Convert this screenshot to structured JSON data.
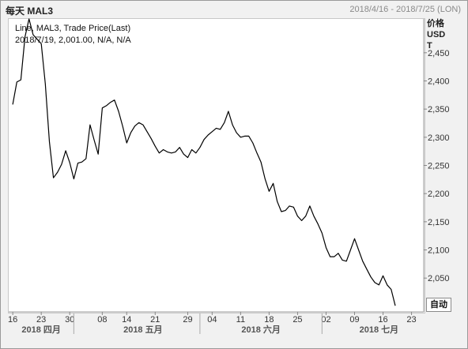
{
  "header": {
    "title": "每天 MAL3",
    "range": "2018/4/16 - 2018/7/25 (LON)"
  },
  "info": {
    "line1": "Line, MAL3, Trade Price(Last)",
    "line2": "2018/7/19, 2,001.00, N/A, N/A"
  },
  "yaxis": {
    "label_line1": "价格",
    "label_line2": "USD",
    "label_line3": "T"
  },
  "auto_button": "自动",
  "chart_data": {
    "type": "line",
    "title": "",
    "xlabel": "",
    "ylabel": "价格 USD T",
    "ylim": [
      1990,
      2510
    ],
    "yticks": [
      2050,
      2100,
      2150,
      2200,
      2250,
      2300,
      2350,
      2400,
      2450
    ],
    "ytick_labels": [
      "2,050",
      "2,100",
      "2,150",
      "2,200",
      "2,250",
      "2,300",
      "2,350",
      "2,400",
      "2,450"
    ],
    "xlim": [
      "2018-04-15",
      "2018-07-26"
    ],
    "xticks": [
      "2018-04-16",
      "2018-04-23",
      "2018-04-30",
      "2018-05-08",
      "2018-05-14",
      "2018-05-21",
      "2018-05-29",
      "2018-06-04",
      "2018-06-11",
      "2018-06-18",
      "2018-06-25",
      "2018-07-02",
      "2018-07-09",
      "2018-07-16",
      "2018-07-23"
    ],
    "xtick_labels": [
      "16",
      "23",
      "30",
      "08",
      "14",
      "21",
      "29",
      "04",
      "11",
      "18",
      "25",
      "02",
      "09",
      "16",
      "23"
    ],
    "month_labels": [
      {
        "text": "2018 四月",
        "center": "2018-04-23"
      },
      {
        "text": "2018 五月",
        "center": "2018-05-18"
      },
      {
        "text": "2018 六月",
        "center": "2018-06-16"
      },
      {
        "text": "2018 七月",
        "center": "2018-07-15"
      }
    ],
    "month_separators": [
      "2018-05-01",
      "2018-06-01",
      "2018-07-01"
    ],
    "series": [
      {
        "points": [
          [
            "2018-04-16",
            2358
          ],
          [
            "2018-04-17",
            2398
          ],
          [
            "2018-04-18",
            2402
          ],
          [
            "2018-04-19",
            2478
          ],
          [
            "2018-04-20",
            2510
          ],
          [
            "2018-04-21",
            2482
          ],
          [
            "2018-04-22",
            2474
          ],
          [
            "2018-04-23",
            2466
          ],
          [
            "2018-04-24",
            2395
          ],
          [
            "2018-04-25",
            2292
          ],
          [
            "2018-04-26",
            2228
          ],
          [
            "2018-04-27",
            2238
          ],
          [
            "2018-04-28",
            2252
          ],
          [
            "2018-04-29",
            2276
          ],
          [
            "2018-04-30",
            2255
          ],
          [
            "2018-05-01",
            2226
          ],
          [
            "2018-05-02",
            2254
          ],
          [
            "2018-05-03",
            2256
          ],
          [
            "2018-05-04",
            2262
          ],
          [
            "2018-05-05",
            2322
          ],
          [
            "2018-05-06",
            2295
          ],
          [
            "2018-05-07",
            2270
          ],
          [
            "2018-05-08",
            2352
          ],
          [
            "2018-05-09",
            2356
          ],
          [
            "2018-05-10",
            2362
          ],
          [
            "2018-05-11",
            2366
          ],
          [
            "2018-05-12",
            2346
          ],
          [
            "2018-05-13",
            2320
          ],
          [
            "2018-05-14",
            2290
          ],
          [
            "2018-05-15",
            2308
          ],
          [
            "2018-05-16",
            2320
          ],
          [
            "2018-05-17",
            2326
          ],
          [
            "2018-05-18",
            2322
          ],
          [
            "2018-05-19",
            2310
          ],
          [
            "2018-05-20",
            2298
          ],
          [
            "2018-05-21",
            2284
          ],
          [
            "2018-05-22",
            2272
          ],
          [
            "2018-05-23",
            2278
          ],
          [
            "2018-05-24",
            2274
          ],
          [
            "2018-05-25",
            2272
          ],
          [
            "2018-05-26",
            2274
          ],
          [
            "2018-05-27",
            2282
          ],
          [
            "2018-05-28",
            2270
          ],
          [
            "2018-05-29",
            2264
          ],
          [
            "2018-05-30",
            2278
          ],
          [
            "2018-05-31",
            2272
          ],
          [
            "2018-06-01",
            2282
          ],
          [
            "2018-06-02",
            2296
          ],
          [
            "2018-06-03",
            2304
          ],
          [
            "2018-06-04",
            2310
          ],
          [
            "2018-06-05",
            2316
          ],
          [
            "2018-06-06",
            2314
          ],
          [
            "2018-06-07",
            2326
          ],
          [
            "2018-06-08",
            2346
          ],
          [
            "2018-06-09",
            2322
          ],
          [
            "2018-06-10",
            2308
          ],
          [
            "2018-06-11",
            2300
          ],
          [
            "2018-06-12",
            2302
          ],
          [
            "2018-06-13",
            2302
          ],
          [
            "2018-06-14",
            2290
          ],
          [
            "2018-06-15",
            2272
          ],
          [
            "2018-06-16",
            2256
          ],
          [
            "2018-06-17",
            2226
          ],
          [
            "2018-06-18",
            2204
          ],
          [
            "2018-06-19",
            2218
          ],
          [
            "2018-06-20",
            2186
          ],
          [
            "2018-06-21",
            2168
          ],
          [
            "2018-06-22",
            2170
          ],
          [
            "2018-06-23",
            2178
          ],
          [
            "2018-06-24",
            2176
          ],
          [
            "2018-06-25",
            2160
          ],
          [
            "2018-06-26",
            2152
          ],
          [
            "2018-06-27",
            2160
          ],
          [
            "2018-06-28",
            2178
          ],
          [
            "2018-06-29",
            2160
          ],
          [
            "2018-06-30",
            2146
          ],
          [
            "2018-07-01",
            2130
          ],
          [
            "2018-07-02",
            2104
          ],
          [
            "2018-07-03",
            2088
          ],
          [
            "2018-07-04",
            2088
          ],
          [
            "2018-07-05",
            2094
          ],
          [
            "2018-07-06",
            2082
          ],
          [
            "2018-07-07",
            2080
          ],
          [
            "2018-07-08",
            2100
          ],
          [
            "2018-07-09",
            2120
          ],
          [
            "2018-07-10",
            2100
          ],
          [
            "2018-07-11",
            2080
          ],
          [
            "2018-07-12",
            2066
          ],
          [
            "2018-07-13",
            2052
          ],
          [
            "2018-07-14",
            2042
          ],
          [
            "2018-07-15",
            2038
          ],
          [
            "2018-07-16",
            2054
          ],
          [
            "2018-07-17",
            2038
          ],
          [
            "2018-07-18",
            2030
          ],
          [
            "2018-07-19",
            2001
          ]
        ]
      }
    ],
    "grid": false,
    "line_color": "#000000"
  }
}
